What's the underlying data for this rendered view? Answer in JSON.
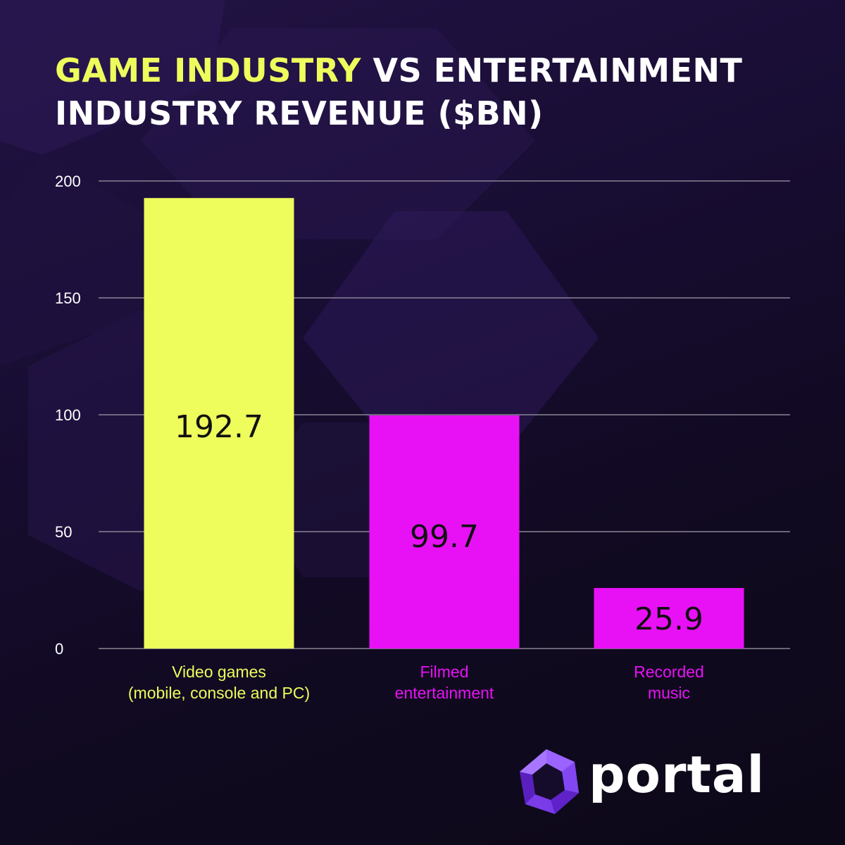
{
  "title": {
    "highlight": "GAME INDUSTRY",
    "rest": " VS ENTERTAINMENT INDUSTRY REVENUE ($BN)"
  },
  "brand": {
    "name": "portal"
  },
  "colors": {
    "yellow": "#eefc5c",
    "magenta": "#e811f5",
    "background": "#150c2b",
    "grid": "#8a8494"
  },
  "chart_data": {
    "type": "bar",
    "title": "GAME INDUSTRY VS ENTERTAINMENT INDUSTRY REVENUE ($BN)",
    "xlabel": "",
    "ylabel": "",
    "ylim": [
      0,
      200
    ],
    "yticks": [
      0,
      50,
      100,
      150,
      200
    ],
    "grid": true,
    "categories": [
      [
        "Video games",
        "(mobile, console and PC)"
      ],
      [
        "Filmed",
        "entertainment"
      ],
      [
        "Recorded",
        "music"
      ]
    ],
    "values": [
      192.7,
      99.7,
      25.9
    ],
    "value_labels": [
      "192.7",
      "99.7",
      "25.9"
    ],
    "bar_colors": [
      "#eefc5c",
      "#e811f5",
      "#e811f5"
    ]
  }
}
